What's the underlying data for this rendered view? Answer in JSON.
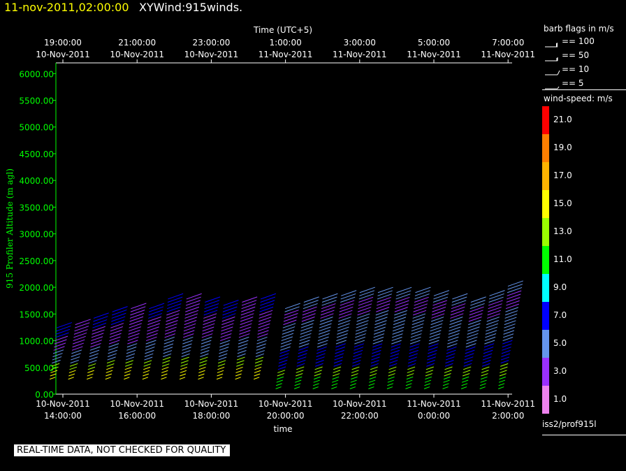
{
  "header": {
    "timestamp": "11-nov-2011,02:00:00",
    "product": "XYWind:915winds."
  },
  "legend": {
    "barb_title": "barb flags in m/s",
    "barbs": [
      {
        "label": "== 100",
        "icon": "barb-flag-100-icon"
      },
      {
        "label": "== 50",
        "icon": "barb-flag-50-icon"
      },
      {
        "label": "== 10",
        "icon": "barb-full-10-icon"
      },
      {
        "label": "== 5",
        "icon": "barb-half-5-icon"
      }
    ],
    "speed_title": "wind-speed: m/s",
    "speed_scale": [
      {
        "value": "21.0",
        "color": "#ff0000"
      },
      {
        "value": "19.0",
        "color": "#ff7f00"
      },
      {
        "value": "17.0",
        "color": "#ffb300"
      },
      {
        "value": "15.0",
        "color": "#ffff00"
      },
      {
        "value": "13.0",
        "color": "#9aff00"
      },
      {
        "value": "11.0",
        "color": "#00ff00"
      },
      {
        "value": "9.0",
        "color": "#00ffff"
      },
      {
        "value": "7.0",
        "color": "#0000ff"
      },
      {
        "value": "5.0",
        "color": "#6495ed"
      },
      {
        "value": "3.0",
        "color": "#9b30ff"
      },
      {
        "value": "1.0",
        "color": "#ee82ee"
      }
    ],
    "source": "iss2/prof915l"
  },
  "footer": {
    "notice": "REAL-TIME DATA, NOT CHECKED FOR QUALITY"
  },
  "chart_data": {
    "type": "scatter",
    "title": "",
    "top_axis_title": "Time (UTC+5)",
    "xlabel": "time",
    "ylabel": "915 Profiler Altitude (m agl)",
    "ylim": [
      0,
      6200
    ],
    "xlim": [
      "10-Nov-2011 13:50:00",
      "11-Nov-2011 02:10:00"
    ],
    "yticks": [
      "0.00",
      "500.00",
      "1000.00",
      "1500.00",
      "2000.00",
      "2500.00",
      "3000.00",
      "3500.00",
      "4000.00",
      "4500.00",
      "5000.00",
      "5500.00",
      "6000.00"
    ],
    "bottom_ticks": [
      {
        "hours": 0,
        "date": "10-Nov-2011",
        "time": "14:00:00"
      },
      {
        "hours": 2,
        "date": "10-Nov-2011",
        "time": "16:00:00"
      },
      {
        "hours": 4,
        "date": "10-Nov-2011",
        "time": "18:00:00"
      },
      {
        "hours": 6,
        "date": "10-Nov-2011",
        "time": "20:00:00"
      },
      {
        "hours": 8,
        "date": "10-Nov-2011",
        "time": "22:00:00"
      },
      {
        "hours": 10,
        "date": "11-Nov-2011",
        "time": "0:00:00"
      },
      {
        "hours": 12,
        "date": "11-Nov-2011",
        "time": "2:00:00"
      }
    ],
    "top_ticks": [
      {
        "hours": 0,
        "time": "19:00:00",
        "date": "10-Nov-2011"
      },
      {
        "hours": 2,
        "time": "21:00:00",
        "date": "10-Nov-2011"
      },
      {
        "hours": 4,
        "time": "23:00:00",
        "date": "10-Nov-2011"
      },
      {
        "hours": 6,
        "time": "1:00:00",
        "date": "11-Nov-2011"
      },
      {
        "hours": 8,
        "time": "3:00:00",
        "date": "11-Nov-2011"
      },
      {
        "hours": 10,
        "time": "5:00:00",
        "date": "11-Nov-2011"
      },
      {
        "hours": 12,
        "time": "7:00:00",
        "date": "11-Nov-2011"
      }
    ],
    "profiles": [
      {
        "time": "10-Nov-2011 13:50",
        "top": 1250,
        "bottom": 280
      },
      {
        "time": "10-Nov-2011 14:20",
        "top": 1300,
        "bottom": 280
      },
      {
        "time": "10-Nov-2011 14:50",
        "top": 1450,
        "bottom": 280
      },
      {
        "time": "10-Nov-2011 15:20",
        "top": 1550,
        "bottom": 280
      },
      {
        "time": "10-Nov-2011 15:50",
        "top": 1600,
        "bottom": 280
      },
      {
        "time": "10-Nov-2011 16:20",
        "top": 1650,
        "bottom": 280
      },
      {
        "time": "10-Nov-2011 16:50",
        "top": 1800,
        "bottom": 280
      },
      {
        "time": "10-Nov-2011 17:20",
        "top": 1800,
        "bottom": 280
      },
      {
        "time": "10-Nov-2011 17:50",
        "top": 1750,
        "bottom": 280
      },
      {
        "time": "10-Nov-2011 18:20",
        "top": 1700,
        "bottom": 280
      },
      {
        "time": "10-Nov-2011 18:50",
        "top": 1750,
        "bottom": 280
      },
      {
        "time": "10-Nov-2011 19:20",
        "top": 1800,
        "bottom": 280
      },
      {
        "time": "10-Nov-2011 20:00",
        "top": 1650,
        "bottom": 100
      },
      {
        "time": "10-Nov-2011 20:30",
        "top": 1750,
        "bottom": 100
      },
      {
        "time": "10-Nov-2011 21:00",
        "top": 1800,
        "bottom": 100
      },
      {
        "time": "10-Nov-2011 21:30",
        "top": 1850,
        "bottom": 100
      },
      {
        "time": "10-Nov-2011 22:00",
        "top": 1900,
        "bottom": 100
      },
      {
        "time": "10-Nov-2011 22:30",
        "top": 1950,
        "bottom": 100
      },
      {
        "time": "10-Nov-2011 23:00",
        "top": 1950,
        "bottom": 100
      },
      {
        "time": "10-Nov-2011 23:30",
        "top": 1900,
        "bottom": 100
      },
      {
        "time": "11-Nov-2011 00:00",
        "top": 1850,
        "bottom": 100
      },
      {
        "time": "11-Nov-2011 00:30",
        "top": 1800,
        "bottom": 100
      },
      {
        "time": "11-Nov-2011 01:00",
        "top": 1750,
        "bottom": 100
      },
      {
        "time": "11-Nov-2011 01:30",
        "top": 1850,
        "bottom": 100
      },
      {
        "time": "11-Nov-2011 02:00",
        "top": 2050,
        "bottom": 100
      }
    ]
  }
}
